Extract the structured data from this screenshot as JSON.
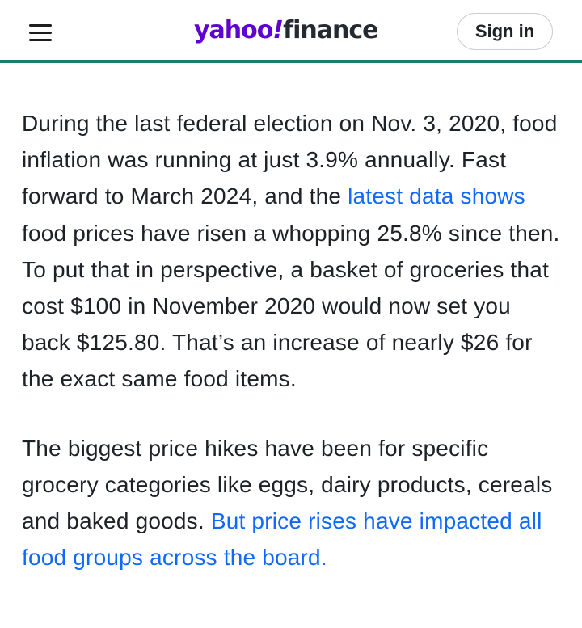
{
  "header": {
    "logo_yahoo": "yahoo",
    "logo_bang": "!",
    "logo_finance": "finance",
    "signin_label": "Sign in",
    "menu_icon": "hamburger-menu-icon",
    "accent_color": "#1b7d6e",
    "brand_color": "#6001d2"
  },
  "article": {
    "paragraph1": {
      "text_before": "During the last federal election on Nov. 3, 2020, food inflation was running at just 3.9% annually. Fast forward to March 2024, and the ",
      "link": "latest data shows",
      "text_after": " food prices have risen a whopping 25.8% since then. To put that in perspective, a basket of groceries that cost $100 in November 2020 would now set you back $125.80. That’s an increase of nearly $26 for the exact same food items."
    },
    "paragraph2": {
      "text_before": "The biggest price hikes have been for specific grocery categories like eggs, dairy products, cereals and baked goods. ",
      "link": "But price rises have impacted all food groups across the board."
    },
    "link_color": "#0f69ff"
  }
}
